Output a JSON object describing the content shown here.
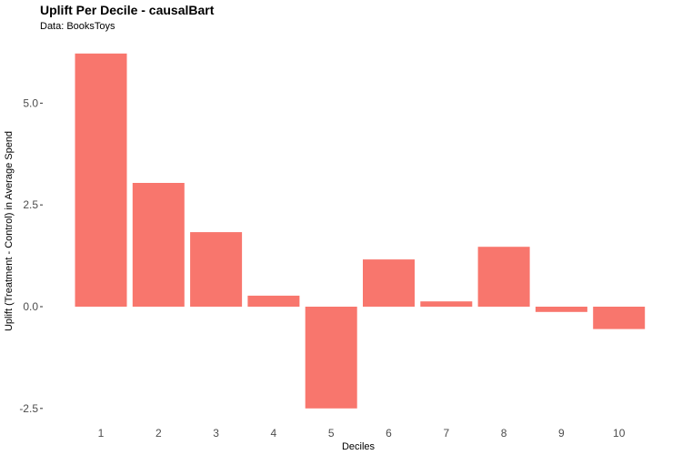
{
  "chart_data": {
    "type": "bar",
    "title": "Uplift Per Decile - causalBart",
    "subtitle": "Data: BooksToys",
    "xlabel": "Deciles",
    "ylabel": "Uplift (Treatment - Control) in Average Spend",
    "categories": [
      "1",
      "2",
      "3",
      "4",
      "5",
      "6",
      "7",
      "8",
      "9",
      "10"
    ],
    "values": [
      6.22,
      3.04,
      1.83,
      0.27,
      -2.5,
      1.16,
      0.13,
      1.47,
      -0.13,
      -0.55
    ],
    "ylim": [
      -2.75,
      6.55
    ],
    "yticks": [
      -2.5,
      0.0,
      2.5,
      5.0
    ],
    "ytick_labels": [
      "-2.5",
      "0.0",
      "2.5",
      "5.0"
    ],
    "bar_color": "#f8766d",
    "grid": false,
    "legend": "none"
  }
}
